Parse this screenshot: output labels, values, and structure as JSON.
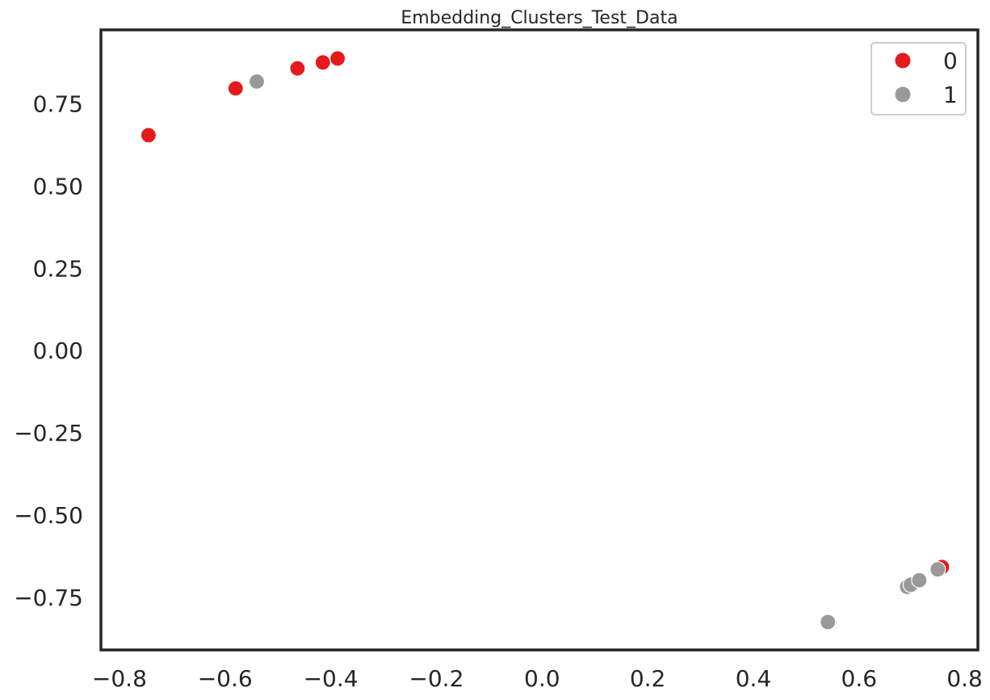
{
  "chart_data": {
    "type": "scatter",
    "title": "Embedding_Clusters_Test_Data",
    "xlabel": "",
    "ylabel": "",
    "xlim": [
      -0.835,
      0.825
    ],
    "ylim": [
      -0.91,
      0.975
    ],
    "xticks": [
      -0.8,
      -0.6,
      -0.4,
      -0.2,
      0.0,
      0.2,
      0.4,
      0.6,
      0.8
    ],
    "xtick_labels": [
      "−0.8",
      "−0.6",
      "−0.4",
      "−0.2",
      "0.0",
      "0.2",
      "0.4",
      "0.6",
      "0.8"
    ],
    "yticks": [
      0.75,
      0.5,
      0.25,
      0.0,
      -0.25,
      -0.5,
      -0.75
    ],
    "ytick_labels": [
      "0.75",
      "0.50",
      "0.25",
      "0.00",
      "−0.25",
      "−0.50",
      "−0.75"
    ],
    "grid": false,
    "legend_position": "top-right",
    "series": [
      {
        "name": "0",
        "color": "#e41a1c",
        "points": [
          {
            "x": -0.745,
            "y": 0.655
          },
          {
            "x": -0.58,
            "y": 0.797
          },
          {
            "x": -0.463,
            "y": 0.858
          },
          {
            "x": -0.415,
            "y": 0.876
          },
          {
            "x": -0.387,
            "y": 0.888
          },
          {
            "x": 0.543,
            "y": -0.825
          },
          {
            "x": 0.757,
            "y": -0.658
          }
        ]
      },
      {
        "name": "1",
        "color": "#999999",
        "points": [
          {
            "x": -0.54,
            "y": 0.818
          },
          {
            "x": 0.541,
            "y": -0.825
          },
          {
            "x": 0.691,
            "y": -0.718
          },
          {
            "x": 0.698,
            "y": -0.712
          },
          {
            "x": 0.714,
            "y": -0.698
          },
          {
            "x": 0.749,
            "y": -0.665
          }
        ]
      }
    ]
  }
}
